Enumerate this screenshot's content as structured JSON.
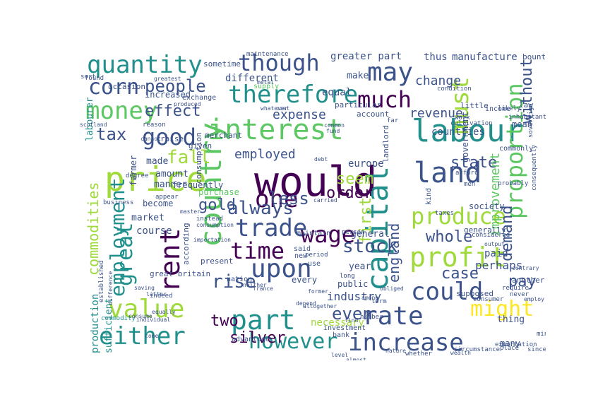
{
  "palette": [
    "#440154",
    "#3b528b",
    "#21908d",
    "#5dc863",
    "#9fda3a",
    "#fde725",
    "#31688e",
    "#35b779"
  ],
  "words": [
    {
      "t": "would",
      "c": 0
    },
    {
      "t": "labour",
      "c": 2
    },
    {
      "t": "price",
      "c": 4
    },
    {
      "t": "interest",
      "c": 3
    },
    {
      "t": "country",
      "c": 3
    },
    {
      "t": "capital",
      "c": 2
    },
    {
      "t": "value",
      "c": 4
    },
    {
      "t": "quantity",
      "c": 2
    },
    {
      "t": "though",
      "c": 1
    },
    {
      "t": "therefore",
      "c": 2
    },
    {
      "t": "money",
      "c": 3
    },
    {
      "t": "may",
      "c": 1
    },
    {
      "t": "land",
      "c": 1
    },
    {
      "t": "great",
      "c": 2
    },
    {
      "t": "upon",
      "c": 1
    },
    {
      "t": "profit",
      "c": 4
    },
    {
      "t": "rent",
      "c": 0
    },
    {
      "t": "trade",
      "c": 1
    },
    {
      "t": "one",
      "c": 0
    },
    {
      "t": "time",
      "c": 0
    },
    {
      "t": "wage",
      "c": 0
    },
    {
      "t": "part",
      "c": 2
    },
    {
      "t": "much",
      "c": 0
    },
    {
      "t": "must",
      "c": 4
    },
    {
      "t": "produce",
      "c": 4
    },
    {
      "t": "rate",
      "c": 1
    },
    {
      "t": "either",
      "c": 2
    },
    {
      "t": "however",
      "c": 2
    },
    {
      "t": "increase",
      "c": 1
    },
    {
      "t": "could",
      "c": 1
    },
    {
      "t": "good",
      "c": 1
    },
    {
      "t": "corn",
      "c": 1
    },
    {
      "t": "people",
      "c": 1
    },
    {
      "t": "proportion",
      "c": 3
    },
    {
      "t": "employment",
      "c": 2
    },
    {
      "t": "commodities",
      "c": 4
    },
    {
      "t": "stock",
      "c": 1
    },
    {
      "t": "might",
      "c": 5
    },
    {
      "t": "rise",
      "c": 1
    },
    {
      "t": "fall",
      "c": 4
    },
    {
      "t": "effect",
      "c": 1
    },
    {
      "t": "less",
      "c": 1
    },
    {
      "t": "always",
      "c": 1
    },
    {
      "t": "gold",
      "c": 1
    },
    {
      "t": "whole",
      "c": 1
    },
    {
      "t": "even",
      "c": 1
    },
    {
      "t": "two",
      "c": 0
    },
    {
      "t": "silver",
      "c": 0
    },
    {
      "t": "pay",
      "c": 1
    },
    {
      "t": "case",
      "c": 1
    },
    {
      "t": "tax",
      "c": 1
    },
    {
      "t": "seem",
      "c": 4
    },
    {
      "t": "state",
      "c": 1
    },
    {
      "t": "order",
      "c": 0
    },
    {
      "t": "england",
      "c": 1
    },
    {
      "t": "first",
      "c": 4
    },
    {
      "t": "without",
      "c": 1
    },
    {
      "t": "demand",
      "c": 1
    },
    {
      "t": "revenue",
      "c": 1
    },
    {
      "t": "expense",
      "c": 1
    },
    {
      "t": "employed",
      "c": 1
    },
    {
      "t": "countries",
      "c": 1
    },
    {
      "t": "change",
      "c": 1
    },
    {
      "t": "perhaps",
      "c": 1
    },
    {
      "t": "industry",
      "c": 1
    },
    {
      "t": "paid",
      "c": 1
    },
    {
      "t": "improvement",
      "c": 3
    },
    {
      "t": "greater part",
      "c": 1
    },
    {
      "t": "manufacture",
      "c": 1
    },
    {
      "t": "thus",
      "c": 1
    },
    {
      "t": "different",
      "c": 1
    },
    {
      "t": "equal",
      "c": 1
    },
    {
      "t": "make",
      "c": 1
    },
    {
      "t": "sometime",
      "c": 1
    },
    {
      "t": "increased",
      "c": 1
    },
    {
      "t": "made",
      "c": 1
    },
    {
      "t": "manner",
      "c": 1
    },
    {
      "t": "frequently",
      "c": 1
    },
    {
      "t": "become",
      "c": 1
    },
    {
      "t": "market",
      "c": 1
    },
    {
      "t": "course",
      "c": 1
    },
    {
      "t": "production",
      "c": 2
    },
    {
      "t": "sufficient",
      "c": 2
    },
    {
      "t": "great britain",
      "c": 1
    },
    {
      "t": "present",
      "c": 1
    },
    {
      "t": "nation",
      "c": 1
    },
    {
      "t": "every",
      "c": 1
    },
    {
      "t": "necessary",
      "c": 4
    },
    {
      "t": "public",
      "c": 1
    },
    {
      "t": "europe",
      "c": 1
    },
    {
      "t": "general",
      "c": 1
    },
    {
      "t": "year",
      "c": 1
    },
    {
      "t": "amount",
      "c": 1
    },
    {
      "t": "consumption",
      "c": 1
    },
    {
      "t": "according",
      "c": 1
    },
    {
      "t": "government",
      "c": 1
    },
    {
      "t": "generally",
      "c": 1
    },
    {
      "t": "supposed",
      "c": 1
    },
    {
      "t": "thing",
      "c": 1
    },
    {
      "t": "many",
      "c": 1
    },
    {
      "t": "another",
      "c": 1
    },
    {
      "t": "farmer",
      "c": 1
    },
    {
      "t": "labourer",
      "c": 2
    },
    {
      "t": "merchant",
      "c": 1
    },
    {
      "t": "given",
      "c": 1
    },
    {
      "t": "raise",
      "c": 1
    },
    {
      "t": "purchase",
      "c": 3
    },
    {
      "t": "mean",
      "c": 1
    },
    {
      "t": "landlord",
      "c": 1
    },
    {
      "t": "society",
      "c": 1
    },
    {
      "t": "little",
      "c": 1
    },
    {
      "t": "account",
      "c": 1
    },
    {
      "t": "particular",
      "c": 1
    },
    {
      "t": "exchange",
      "c": 1
    },
    {
      "t": "supply",
      "c": 3
    },
    {
      "t": "occasion",
      "c": 1
    },
    {
      "t": "sort",
      "c": 1
    },
    {
      "t": "found",
      "c": 1
    },
    {
      "t": "advantage",
      "c": 1
    },
    {
      "t": "indeed",
      "c": 1
    },
    {
      "t": "investment",
      "c": 1
    },
    {
      "t": "bank",
      "c": 1
    },
    {
      "t": "person",
      "c": 1
    },
    {
      "t": "maintain",
      "c": 1
    },
    {
      "t": "said",
      "c": 1
    },
    {
      "t": "new",
      "c": 1
    },
    {
      "t": "use",
      "c": 1
    },
    {
      "t": "long",
      "c": 1
    },
    {
      "t": "number",
      "c": 1
    },
    {
      "t": "term",
      "c": 1
    },
    {
      "t": "kind",
      "c": 1
    },
    {
      "t": "law",
      "c": 1
    },
    {
      "t": "income",
      "c": 1
    },
    {
      "t": "likely",
      "c": 1
    },
    {
      "t": "bounty",
      "c": 1
    },
    {
      "t": "inhabitant",
      "c": 1
    },
    {
      "t": "sovereign",
      "c": 1
    },
    {
      "t": "consequently",
      "c": 1
    },
    {
      "t": "commonly",
      "c": 1
    },
    {
      "t": "maintenance",
      "c": 1
    },
    {
      "t": "far",
      "c": 1
    },
    {
      "t": "work",
      "c": 1
    },
    {
      "t": "cultivation",
      "c": 1
    },
    {
      "t": "probably",
      "c": 1
    },
    {
      "t": "condition",
      "c": 1
    },
    {
      "t": "taxes",
      "c": 1
    },
    {
      "t": "afford",
      "c": 1
    },
    {
      "t": "men",
      "c": 1
    },
    {
      "t": "considered",
      "c": 1
    },
    {
      "t": "consumer",
      "c": 1
    },
    {
      "t": "period",
      "c": 1
    },
    {
      "t": "circumstance",
      "c": 1
    },
    {
      "t": "place",
      "c": 1
    },
    {
      "t": "exportation",
      "c": 1
    },
    {
      "t": "whether",
      "c": 1
    },
    {
      "t": "nature",
      "c": 1
    },
    {
      "t": "almost",
      "c": 1
    },
    {
      "t": "level",
      "c": 1
    },
    {
      "t": "since",
      "c": 1
    },
    {
      "t": "wealth",
      "c": 1
    },
    {
      "t": "degree",
      "c": 1
    },
    {
      "t": "individual",
      "c": 1
    },
    {
      "t": "commodity",
      "c": 2
    },
    {
      "t": "established",
      "c": 1
    },
    {
      "t": "difference",
      "c": 1
    },
    {
      "t": "master",
      "c": 1
    },
    {
      "t": "instead",
      "c": 1
    },
    {
      "t": "mine",
      "c": 1
    },
    {
      "t": "obliged",
      "c": 1
    },
    {
      "t": "among",
      "c": 1
    },
    {
      "t": "depend",
      "c": 1
    },
    {
      "t": "altogether",
      "c": 1
    },
    {
      "t": "require",
      "c": 1
    },
    {
      "t": "never",
      "c": 1
    },
    {
      "t": "appear",
      "c": 1
    },
    {
      "t": "business",
      "c": 1
    },
    {
      "t": "reason",
      "c": 1
    },
    {
      "t": "scotland",
      "c": 1
    },
    {
      "t": "cannot",
      "c": 1
    },
    {
      "t": "greatest",
      "c": 1
    },
    {
      "t": "produced",
      "c": 1
    },
    {
      "t": "metal",
      "c": 1
    },
    {
      "t": "whatever",
      "c": 1
    },
    {
      "t": "cost",
      "c": 1
    },
    {
      "t": "common",
      "c": 1
    },
    {
      "t": "fund",
      "c": 1
    },
    {
      "t": "consumption",
      "c": 1
    },
    {
      "t": "importation",
      "c": 1
    },
    {
      "t": "consume",
      "c": 1
    },
    {
      "t": "come",
      "c": 1
    },
    {
      "t": "equally",
      "c": 1
    },
    {
      "t": "carried",
      "c": 1
    },
    {
      "t": "debt",
      "c": 1
    },
    {
      "t": "former",
      "c": 1
    },
    {
      "t": "find",
      "c": 1
    },
    {
      "t": "output",
      "c": 1
    },
    {
      "t": "contrary",
      "c": 1
    },
    {
      "t": "employ",
      "c": 1
    },
    {
      "t": "saving",
      "c": 1
    },
    {
      "t": "latter",
      "c": 1
    },
    {
      "t": "france",
      "c": 1
    },
    {
      "t": "neither",
      "c": 1
    }
  ]
}
